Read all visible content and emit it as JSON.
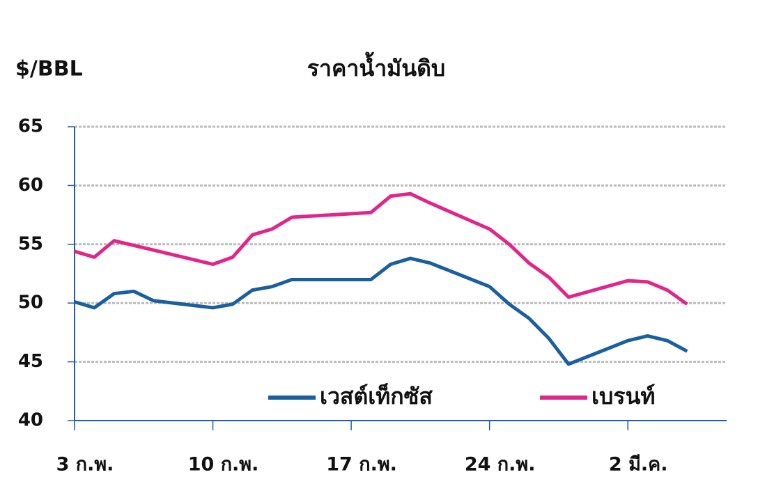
{
  "chart_data": {
    "type": "line",
    "title": "ราคาน้ำมันดิบ",
    "y_label": "$/BBL",
    "x": [
      0,
      1,
      2,
      3,
      4,
      7,
      8,
      9,
      10,
      11,
      12,
      15,
      16,
      17,
      18,
      21,
      22,
      23,
      24,
      25,
      28,
      29,
      30,
      31
    ],
    "xlim": [
      0,
      33
    ],
    "xticks": [
      {
        "value": 0,
        "label": "3 ก.พ."
      },
      {
        "value": 7,
        "label": "10 ก.พ."
      },
      {
        "value": 14,
        "label": "17 ก.พ."
      },
      {
        "value": 21,
        "label": "24 ก.พ."
      },
      {
        "value": 28,
        "label": "2 มี.ค."
      }
    ],
    "ylim": [
      40,
      65
    ],
    "yticks": [
      40,
      45,
      50,
      55,
      60,
      65
    ],
    "grid": true,
    "series": [
      {
        "name": "เวสต์เท็กซัส",
        "color": "#1a5f9e",
        "values": [
          50.1,
          49.6,
          50.8,
          51.0,
          50.2,
          49.6,
          49.9,
          51.1,
          51.4,
          52.0,
          52.0,
          52.0,
          53.3,
          53.8,
          53.4,
          51.4,
          49.9,
          48.7,
          47.0,
          44.8,
          46.8,
          47.2,
          46.8,
          45.9
        ]
      },
      {
        "name": "เบรนท์",
        "color": "#e0268b",
        "values": [
          54.4,
          53.9,
          55.3,
          54.9,
          54.5,
          53.3,
          53.9,
          55.8,
          56.3,
          57.3,
          57.4,
          57.7,
          59.1,
          59.3,
          58.5,
          56.3,
          55.0,
          53.4,
          52.2,
          50.5,
          51.9,
          51.8,
          51.1,
          49.9
        ]
      }
    ]
  }
}
